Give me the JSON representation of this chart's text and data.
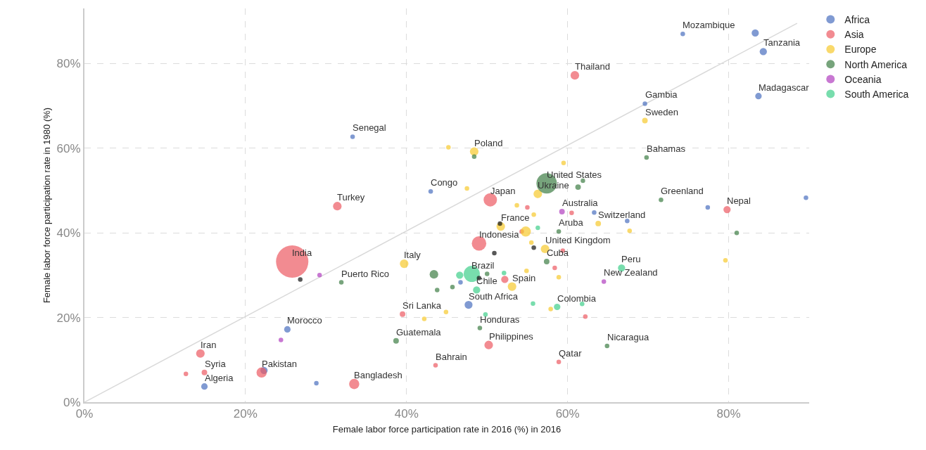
{
  "chart_data": {
    "type": "bubble",
    "relative": false,
    "xlabel": "Female labor force participation rate in 2016 (%) in 2016",
    "ylabel": "Female labor force participation rate in 1980 (%)",
    "xlim": [
      0,
      90
    ],
    "ylim": [
      0,
      93
    ],
    "xticks": [
      {
        "value": 0,
        "label": "0%"
      },
      {
        "value": 20,
        "label": "20%"
      },
      {
        "value": 40,
        "label": "40%"
      },
      {
        "value": 60,
        "label": "60%"
      },
      {
        "value": 80,
        "label": "80%"
      }
    ],
    "yticks": [
      {
        "value": 0,
        "label": "0%"
      },
      {
        "value": 20,
        "label": "20%"
      },
      {
        "value": 40,
        "label": "40%"
      },
      {
        "value": 60,
        "label": "60%"
      },
      {
        "value": 80,
        "label": "80%"
      }
    ],
    "grid": true,
    "legend": "top right",
    "series": [
      {
        "type": "line",
        "marker": "none",
        "color": "#d9d9d9",
        "x": [
          0,
          88.5
        ],
        "values": [
          0,
          89.5
        ]
      },
      {
        "name": "Africa",
        "color": "#4a6fbf",
        "x": [
          74.3,
          83.3,
          84.3,
          83.7,
          69.6,
          33.3,
          43.0,
          25.2,
          22.3,
          14.9,
          28.8,
          47.7,
          46.7,
          77.4,
          89.6,
          63.3,
          67.4
        ],
        "values": [
          87.0,
          87.2,
          82.8,
          72.3,
          70.5,
          62.7,
          49.8,
          17.2,
          7.5,
          3.7,
          4.5,
          23.0,
          28.3,
          46.0,
          48.3,
          44.8,
          42.8
        ],
        "sizes": [
          0.02,
          0.05,
          0.05,
          0.04,
          0.02,
          0.02,
          0.02,
          0.04,
          0.05,
          0.04,
          0.02,
          0.06,
          0.02,
          0.02,
          0.02,
          0.02,
          0.02
        ]
      },
      {
        "name": "Asia",
        "color": "#ec5a62",
        "x": [
          25.8,
          60.9,
          31.4,
          50.4,
          49.0,
          79.8,
          14.4,
          14.9,
          12.6,
          22.0,
          33.5,
          39.5,
          50.2,
          43.6,
          58.9,
          52.2,
          55.0,
          54.3,
          60.5,
          58.4,
          62.2,
          59.4
        ],
        "values": [
          33.2,
          77.2,
          46.3,
          47.8,
          37.5,
          45.5,
          11.5,
          7.0,
          6.7,
          7.0,
          4.3,
          20.8,
          13.5,
          8.7,
          9.5,
          29.0,
          46.0,
          40.3,
          44.7,
          31.7,
          20.2,
          35.8
        ],
        "sizes": [
          1,
          0.07,
          0.07,
          0.17,
          0.2,
          0.05,
          0.07,
          0.03,
          0.02,
          0.1,
          0.1,
          0.03,
          0.07,
          0.02,
          0.02,
          0.05,
          0.02,
          0.02,
          0.02,
          0.02,
          0.02,
          0.02
        ]
      },
      {
        "name": "Europe",
        "color": "#f7c92c",
        "x": [
          48.4,
          45.2,
          47.5,
          56.3,
          39.7,
          51.7,
          54.8,
          57.2,
          53.1,
          69.6,
          63.8,
          53.7,
          55.8,
          55.5,
          58.9,
          54.9,
          44.9,
          42.2,
          57.9,
          67.7,
          79.6,
          59.5
        ],
        "values": [
          59.2,
          60.2,
          50.5,
          49.2,
          32.7,
          41.5,
          40.3,
          36.2,
          27.3,
          66.5,
          42.2,
          46.5,
          44.3,
          37.7,
          29.5,
          31.0,
          21.3,
          19.7,
          22.0,
          40.5,
          33.5,
          56.5
        ],
        "sizes": [
          0.07,
          0.02,
          0.02,
          0.07,
          0.07,
          0.07,
          0.1,
          0.07,
          0.07,
          0.03,
          0.03,
          0.02,
          0.02,
          0.02,
          0.02,
          0.02,
          0.02,
          0.02,
          0.02,
          0.02,
          0.02,
          0.02
        ]
      },
      {
        "name": "North America",
        "color": "#3d7d45",
        "x": [
          57.4,
          71.6,
          69.8,
          61.3,
          61.9,
          58.9,
          57.4,
          31.9,
          38.7,
          49.1,
          64.9,
          43.4,
          43.8,
          45.7,
          81.0,
          48.4,
          50.0
        ],
        "values": [
          51.7,
          47.8,
          57.8,
          50.8,
          52.3,
          40.3,
          33.2,
          28.3,
          14.5,
          17.5,
          13.3,
          30.2,
          26.5,
          27.2,
          40.0,
          58.0,
          30.3
        ],
        "sizes": [
          0.4,
          0.02,
          0.02,
          0.03,
          0.02,
          0.02,
          0.03,
          0.02,
          0.03,
          0.02,
          0.02,
          0.07,
          0.02,
          0.02,
          0.02,
          0.02,
          0.02
        ]
      },
      {
        "name": "Oceania",
        "color": "#b03fbf",
        "x": [
          59.3,
          64.5,
          29.2,
          24.4
        ],
        "values": [
          45.0,
          28.5,
          30.0,
          14.7
        ],
        "sizes": [
          0.03,
          0.02,
          0.02,
          0.02
        ]
      },
      {
        "name": "South America",
        "color": "#3fcf8a",
        "x": [
          48.1,
          48.7,
          66.7,
          58.7,
          46.6,
          52.1,
          55.7,
          49.8,
          61.8,
          56.3
        ],
        "values": [
          30.3,
          26.5,
          31.7,
          22.5,
          30.0,
          30.5,
          23.3,
          20.7,
          23.2,
          41.2
        ],
        "sizes": [
          0.25,
          0.05,
          0.05,
          0.04,
          0.05,
          0.02,
          0.02,
          0.02,
          0.02,
          0.02
        ]
      },
      {
        "color": "#111111",
        "x": [
          26.8,
          50.9,
          55.8,
          49.0,
          51.6
        ],
        "values": [
          29.0,
          35.2,
          36.5,
          29.3,
          42.2
        ],
        "sizes": [
          0.02,
          0.02,
          0.02,
          0.02,
          0.02
        ]
      }
    ],
    "annotations": [
      {
        "text": "Mozambique",
        "x": 74.3,
        "y": 87.0
      },
      {
        "text": "Tanzania",
        "x": 84.3,
        "y": 82.8
      },
      {
        "text": "Madagascar",
        "x": 83.7,
        "y": 72.3
      },
      {
        "text": "Thailand",
        "x": 60.9,
        "y": 77.2
      },
      {
        "text": "Gambia",
        "x": 69.6,
        "y": 70.5
      },
      {
        "text": "Sweden",
        "x": 69.6,
        "y": 66.5
      },
      {
        "text": "Senegal",
        "x": 33.3,
        "y": 62.7
      },
      {
        "text": "Poland",
        "x": 48.4,
        "y": 59.2
      },
      {
        "text": "Bahamas",
        "x": 69.8,
        "y": 57.8
      },
      {
        "text": "United States",
        "x": 57.4,
        "y": 51.7
      },
      {
        "text": "Congo",
        "x": 43.0,
        "y": 49.8
      },
      {
        "text": "Japan",
        "x": 50.4,
        "y": 47.8
      },
      {
        "text": "Ukraine",
        "x": 56.3,
        "y": 49.2
      },
      {
        "text": "Turkey",
        "x": 31.4,
        "y": 46.3
      },
      {
        "text": "Greenland",
        "x": 71.6,
        "y": 47.8
      },
      {
        "text": "Nepal",
        "x": 79.8,
        "y": 45.5
      },
      {
        "text": "Australia",
        "x": 59.3,
        "y": 45.0
      },
      {
        "text": "Switzerland",
        "x": 63.8,
        "y": 42.2
      },
      {
        "text": "France",
        "x": 51.7,
        "y": 41.5
      },
      {
        "text": "Aruba",
        "x": 58.9,
        "y": 40.3
      },
      {
        "text": "Indonesia",
        "x": 49.0,
        "y": 37.5
      },
      {
        "text": "United Kingdom",
        "x": 57.2,
        "y": 36.2
      },
      {
        "text": "India",
        "x": 25.8,
        "y": 33.2
      },
      {
        "text": "Cuba",
        "x": 57.4,
        "y": 33.2
      },
      {
        "text": "Italy",
        "x": 39.7,
        "y": 32.7
      },
      {
        "text": "Brazil",
        "x": 48.1,
        "y": 30.3
      },
      {
        "text": "Peru",
        "x": 66.7,
        "y": 31.7
      },
      {
        "text": "Puerto Rico",
        "x": 31.9,
        "y": 28.3
      },
      {
        "text": "New Zealand",
        "x": 64.5,
        "y": 28.5
      },
      {
        "text": "Spain",
        "x": 53.1,
        "y": 27.3
      },
      {
        "text": "Chile",
        "x": 48.7,
        "y": 26.5
      },
      {
        "text": "South Africa",
        "x": 47.7,
        "y": 23.0
      },
      {
        "text": "Colombia",
        "x": 58.7,
        "y": 22.5
      },
      {
        "text": "Sri Lanka",
        "x": 39.5,
        "y": 20.8
      },
      {
        "text": "Morocco",
        "x": 25.2,
        "y": 17.2
      },
      {
        "text": "Honduras",
        "x": 49.1,
        "y": 17.5
      },
      {
        "text": "Guatemala",
        "x": 38.7,
        "y": 14.5
      },
      {
        "text": "Philippines",
        "x": 50.2,
        "y": 13.5
      },
      {
        "text": "Nicaragua",
        "x": 64.9,
        "y": 13.3
      },
      {
        "text": "Iran",
        "x": 14.4,
        "y": 11.5
      },
      {
        "text": "Bahrain",
        "x": 43.6,
        "y": 8.7
      },
      {
        "text": "Qatar",
        "x": 58.9,
        "y": 9.5
      },
      {
        "text": "Syria",
        "x": 14.9,
        "y": 7.0
      },
      {
        "text": "Pakistan",
        "x": 22.0,
        "y": 7.0
      },
      {
        "text": "Algeria",
        "x": 14.9,
        "y": 3.7
      },
      {
        "text": "Bangladesh",
        "x": 33.5,
        "y": 4.3
      }
    ]
  }
}
